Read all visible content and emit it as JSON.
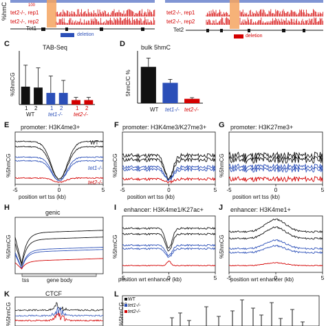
{
  "top": {
    "ylabel": "%hmC",
    "track_labels_left": [
      "tet1-/-, rep1",
      "tet2-/-, rep1",
      "tet2-/-, rep2"
    ],
    "track_labels_right": [
      "tet2-/-, rep1",
      "tet2-/-, rep2"
    ],
    "scale_tick": "100",
    "gene_left": "Tet1",
    "gene_right": "Tet2",
    "deletion_label": "deletion"
  },
  "panels": {
    "C": {
      "letter": "C",
      "title": "TAB-Seq",
      "ylabel": "%5hmCG"
    },
    "D": {
      "letter": "D",
      "title": "bulk 5hmC",
      "ylabel": "5hmC/C %"
    },
    "E": {
      "letter": "E",
      "title": "promoter: H3K4me3+",
      "ylabel": "%5hmCG",
      "xlabel": "position wrt tss (kb)"
    },
    "F": {
      "letter": "F",
      "title": "promoter: H3K4me3/K27me3+",
      "ylabel": "%5hmCG",
      "xlabel": "position wrt tss (kb)"
    },
    "G": {
      "letter": "G",
      "title": "promoter: H3K27me3+",
      "ylabel": "%5hmCG",
      "xlabel": "position wrt tss (kb)"
    },
    "H": {
      "letter": "H",
      "title": "genic",
      "ylabel": "%5hmCG",
      "xlabel_tss": "tss",
      "xlabel_body": "gene body"
    },
    "I": {
      "letter": "I",
      "title": "enhancer: H3K4me1/K27ac+",
      "ylabel": "%5hmCG",
      "xlabel": "position wrt enhancer (kb)"
    },
    "J": {
      "letter": "J",
      "title": "enhancer: H3K4me1+",
      "ylabel": "%5hmCG",
      "xlabel": "position wrt enhancer (kb)"
    },
    "K": {
      "letter": "K",
      "title": "CTCF",
      "ylabel": "%5hmCG"
    },
    "L": {
      "letter": "L",
      "ylabel": "%5hmCG",
      "ytick": "10",
      "legend": [
        "WT",
        "tet1-/-",
        "tet2-/-"
      ]
    }
  },
  "c_labels": {
    "reps": [
      "1",
      "2",
      "1",
      "2",
      "1",
      "2"
    ],
    "groups": [
      "WT",
      "tet1-/-",
      "tet2-/-"
    ]
  },
  "d_labels": {
    "groups": [
      "WT",
      "tet1-/-",
      "tet2-/-"
    ]
  },
  "e_labels": {
    "wt": "WT",
    "tet1": "tet1-/-",
    "tet2": "tet2-/-"
  },
  "x_ticks": [
    "-5",
    "0",
    "5"
  ],
  "colors": {
    "wt": "#111111",
    "tet1": "#2b4fb8",
    "tet2": "#d40000",
    "deletion": "#f4a460"
  },
  "chart_data": [
    {
      "panel": "C",
      "type": "bar",
      "title": "TAB-Seq",
      "ylabel": "%5hmCG",
      "categories": [
        "WT 1",
        "WT 2",
        "tet1-/- 1",
        "tet1-/- 2",
        "tet2-/- 1",
        "tet2-/- 2"
      ],
      "values": [
        2.0,
        1.9,
        1.3,
        1.3,
        0.5,
        0.5
      ],
      "errors": [
        2.4,
        2.2,
        1.9,
        1.4,
        0.3,
        0.3
      ],
      "ylim": [
        0,
        6
      ]
    },
    {
      "panel": "D",
      "type": "bar",
      "title": "bulk 5hmC",
      "ylabel": "5hmC/C %",
      "categories": [
        "WT",
        "tet1-/-",
        "tet2-/-"
      ],
      "values": [
        0.125,
        0.07,
        0.015
      ],
      "errors": [
        0.03,
        0.012,
        0.004
      ],
      "ylim": [
        0,
        0.18
      ]
    }
  ]
}
